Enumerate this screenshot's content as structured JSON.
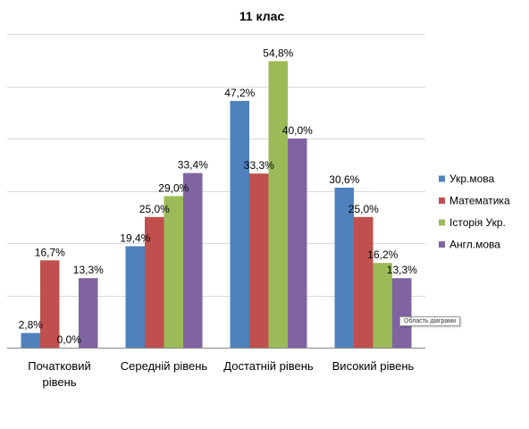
{
  "chart_data": {
    "type": "bar",
    "title": "11 клас",
    "categories": [
      "Початковий рівень",
      "Середній рівень",
      "Достатній рівень",
      "Високий рівень"
    ],
    "category_label_lines": [
      [
        "Початковий",
        "рівень"
      ],
      [
        "Середній рівень"
      ],
      [
        "Достатній рівень"
      ],
      [
        "Високий рівень"
      ]
    ],
    "series": [
      {
        "name": "Укр.мова",
        "color": "#4F81BD",
        "values": [
          2.8,
          19.4,
          47.2,
          30.6
        ],
        "labels": [
          "2,8%",
          "19,4%",
          "47,2%",
          "30,6%"
        ]
      },
      {
        "name": "Математика",
        "color": "#C0504D",
        "values": [
          16.7,
          25.0,
          33.3,
          25.0
        ],
        "labels": [
          "16,7%",
          "25,0%",
          "33,3%",
          "25,0%"
        ]
      },
      {
        "name": "Історія Укр.",
        "color": "#9BBB59",
        "values": [
          0.0,
          29.0,
          54.8,
          16.2
        ],
        "labels": [
          "0,0%",
          "29,0%",
          "54,8%",
          "16,2%"
        ]
      },
      {
        "name": "Англ.мова",
        "color": "#8064A2",
        "values": [
          13.3,
          33.4,
          40.0,
          13.3
        ],
        "labels": [
          "13,3%",
          "33,4%",
          "40,0%",
          "13,3%"
        ]
      }
    ],
    "ylim": [
      0,
      60
    ],
    "y_gridline_step": 10,
    "y_axis_labels_visible": false,
    "grid": true,
    "legend_position": "right"
  },
  "tooltip": {
    "text": "Область діаграми"
  }
}
